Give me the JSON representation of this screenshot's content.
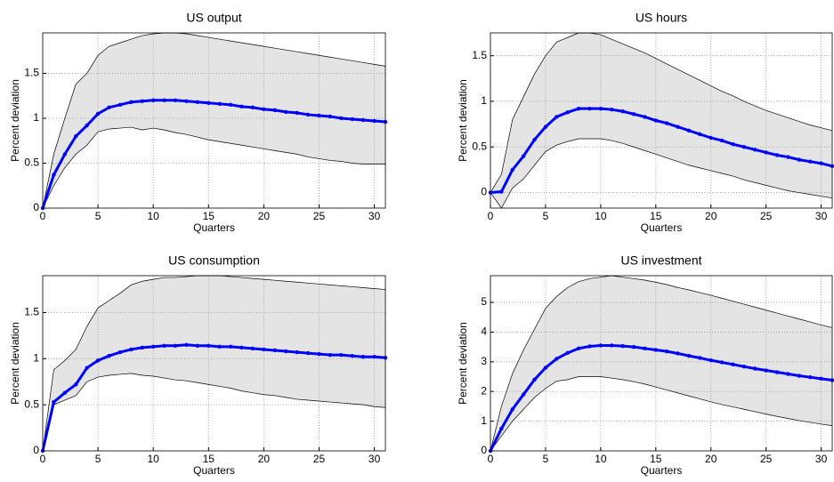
{
  "chart_data": [
    {
      "type": "line",
      "title": "US output",
      "xlabel": "Quarters",
      "ylabel": "Percent deviation",
      "x": [
        0,
        1,
        2,
        3,
        4,
        5,
        6,
        7,
        8,
        9,
        10,
        11,
        12,
        13,
        14,
        15,
        16,
        17,
        18,
        19,
        20,
        21,
        22,
        23,
        24,
        25,
        26,
        27,
        28,
        29,
        30,
        31
      ],
      "xlim": [
        0,
        31
      ],
      "xticks": [
        0,
        5,
        10,
        15,
        20,
        25,
        30
      ],
      "ylim": [
        0,
        1.95
      ],
      "yticks": [
        0,
        0.5,
        1,
        1.5
      ],
      "grid": true,
      "color": "#0000ff",
      "band_color": "#e4e4e4",
      "values": [
        0,
        0.37,
        0.6,
        0.8,
        0.92,
        1.05,
        1.12,
        1.15,
        1.18,
        1.19,
        1.2,
        1.2,
        1.2,
        1.19,
        1.18,
        1.17,
        1.16,
        1.15,
        1.13,
        1.12,
        1.1,
        1.09,
        1.07,
        1.06,
        1.04,
        1.03,
        1.02,
        1.0,
        0.99,
        0.98,
        0.97,
        0.96
      ],
      "band_lower": [
        0,
        0.25,
        0.45,
        0.6,
        0.7,
        0.85,
        0.88,
        0.89,
        0.9,
        0.87,
        0.89,
        0.87,
        0.84,
        0.82,
        0.79,
        0.76,
        0.74,
        0.72,
        0.7,
        0.68,
        0.66,
        0.64,
        0.62,
        0.6,
        0.57,
        0.55,
        0.53,
        0.52,
        0.5,
        0.49,
        0.49,
        0.49
      ],
      "band_upper": [
        0,
        0.6,
        1.0,
        1.38,
        1.5,
        1.7,
        1.8,
        1.84,
        1.88,
        1.92,
        1.94,
        1.95,
        1.95,
        1.94,
        1.92,
        1.9,
        1.88,
        1.86,
        1.84,
        1.82,
        1.8,
        1.78,
        1.76,
        1.74,
        1.72,
        1.7,
        1.68,
        1.66,
        1.64,
        1.62,
        1.6,
        1.58
      ]
    },
    {
      "type": "line",
      "title": "US hours",
      "xlabel": "Quarters",
      "ylabel": "Percent deviation",
      "x": [
        0,
        1,
        2,
        3,
        4,
        5,
        6,
        7,
        8,
        9,
        10,
        11,
        12,
        13,
        14,
        15,
        16,
        17,
        18,
        19,
        20,
        21,
        22,
        23,
        24,
        25,
        26,
        27,
        28,
        29,
        30,
        31
      ],
      "xlim": [
        0,
        31
      ],
      "xticks": [
        0,
        5,
        10,
        15,
        20,
        25,
        30
      ],
      "ylim": [
        -0.17,
        1.75
      ],
      "yticks": [
        0,
        0.5,
        1,
        1.5
      ],
      "grid": true,
      "color": "#0000ff",
      "band_color": "#e4e4e4",
      "values": [
        0,
        0.01,
        0.25,
        0.4,
        0.58,
        0.72,
        0.83,
        0.88,
        0.92,
        0.92,
        0.92,
        0.91,
        0.89,
        0.86,
        0.83,
        0.79,
        0.76,
        0.72,
        0.68,
        0.64,
        0.6,
        0.57,
        0.53,
        0.5,
        0.47,
        0.44,
        0.41,
        0.39,
        0.36,
        0.34,
        0.32,
        0.29
      ],
      "band_lower": [
        0,
        -0.17,
        0.05,
        0.15,
        0.3,
        0.45,
        0.52,
        0.56,
        0.59,
        0.59,
        0.59,
        0.57,
        0.54,
        0.5,
        0.46,
        0.42,
        0.38,
        0.34,
        0.3,
        0.27,
        0.24,
        0.21,
        0.18,
        0.14,
        0.11,
        0.08,
        0.05,
        0.02,
        0,
        -0.02,
        -0.04,
        -0.06
      ],
      "band_upper": [
        0,
        0.2,
        0.8,
        1.05,
        1.3,
        1.5,
        1.65,
        1.7,
        1.75,
        1.75,
        1.73,
        1.68,
        1.63,
        1.58,
        1.53,
        1.47,
        1.41,
        1.35,
        1.29,
        1.23,
        1.17,
        1.11,
        1.06,
        1.0,
        0.95,
        0.9,
        0.86,
        0.82,
        0.78,
        0.74,
        0.71,
        0.68
      ]
    },
    {
      "type": "line",
      "title": "US consumption",
      "xlabel": "Quarters",
      "ylabel": "Percent deviation",
      "x": [
        0,
        1,
        2,
        3,
        4,
        5,
        6,
        7,
        8,
        9,
        10,
        11,
        12,
        13,
        14,
        15,
        16,
        17,
        18,
        19,
        20,
        21,
        22,
        23,
        24,
        25,
        26,
        27,
        28,
        29,
        30,
        31
      ],
      "xlim": [
        0,
        31
      ],
      "xticks": [
        0,
        5,
        10,
        15,
        20,
        25,
        30
      ],
      "ylim": [
        0,
        1.9
      ],
      "yticks": [
        0,
        0.5,
        1,
        1.5
      ],
      "grid": true,
      "color": "#0000ff",
      "band_color": "#e4e4e4",
      "values": [
        0,
        0.53,
        0.63,
        0.72,
        0.9,
        0.98,
        1.03,
        1.07,
        1.1,
        1.12,
        1.13,
        1.14,
        1.14,
        1.15,
        1.14,
        1.14,
        1.13,
        1.13,
        1.12,
        1.11,
        1.1,
        1.09,
        1.08,
        1.07,
        1.06,
        1.05,
        1.04,
        1.04,
        1.03,
        1.02,
        1.02,
        1.01
      ],
      "band_lower": [
        0,
        0.5,
        0.55,
        0.6,
        0.75,
        0.8,
        0.82,
        0.83,
        0.84,
        0.82,
        0.81,
        0.79,
        0.77,
        0.76,
        0.74,
        0.72,
        0.7,
        0.68,
        0.65,
        0.63,
        0.61,
        0.6,
        0.58,
        0.56,
        0.55,
        0.54,
        0.53,
        0.52,
        0.51,
        0.5,
        0.48,
        0.47
      ],
      "band_upper": [
        0,
        0.88,
        0.98,
        1.1,
        1.35,
        1.55,
        1.63,
        1.71,
        1.8,
        1.84,
        1.86,
        1.88,
        1.88,
        1.89,
        1.9,
        1.9,
        1.9,
        1.89,
        1.88,
        1.87,
        1.86,
        1.85,
        1.84,
        1.83,
        1.82,
        1.81,
        1.8,
        1.79,
        1.78,
        1.77,
        1.76,
        1.75
      ]
    },
    {
      "type": "line",
      "title": "US investment",
      "xlabel": "Quarters",
      "ylabel": "Percent deviation",
      "x": [
        0,
        1,
        2,
        3,
        4,
        5,
        6,
        7,
        8,
        9,
        10,
        11,
        12,
        13,
        14,
        15,
        16,
        17,
        18,
        19,
        20,
        21,
        22,
        23,
        24,
        25,
        26,
        27,
        28,
        29,
        30,
        31
      ],
      "xlim": [
        0,
        31
      ],
      "xticks": [
        0,
        5,
        10,
        15,
        20,
        25,
        30
      ],
      "ylim": [
        0,
        5.9
      ],
      "yticks": [
        0,
        1,
        2,
        3,
        4,
        5
      ],
      "grid": true,
      "color": "#0000ff",
      "band_color": "#e4e4e4",
      "values": [
        0,
        0.75,
        1.4,
        1.9,
        2.4,
        2.8,
        3.1,
        3.3,
        3.45,
        3.52,
        3.55,
        3.55,
        3.53,
        3.5,
        3.45,
        3.4,
        3.35,
        3.28,
        3.2,
        3.13,
        3.05,
        2.98,
        2.91,
        2.84,
        2.77,
        2.71,
        2.65,
        2.59,
        2.53,
        2.48,
        2.43,
        2.38
      ],
      "band_lower": [
        0,
        0.5,
        1.0,
        1.4,
        1.8,
        2.1,
        2.35,
        2.4,
        2.5,
        2.5,
        2.5,
        2.45,
        2.4,
        2.33,
        2.25,
        2.15,
        2.05,
        1.95,
        1.85,
        1.75,
        1.65,
        1.56,
        1.48,
        1.4,
        1.32,
        1.24,
        1.16,
        1.09,
        1.02,
        0.96,
        0.9,
        0.85
      ],
      "band_upper": [
        0,
        1.5,
        2.6,
        3.4,
        4.1,
        4.8,
        5.2,
        5.5,
        5.7,
        5.8,
        5.85,
        5.9,
        5.85,
        5.8,
        5.75,
        5.68,
        5.6,
        5.5,
        5.42,
        5.33,
        5.24,
        5.14,
        5.04,
        4.94,
        4.84,
        4.74,
        4.64,
        4.54,
        4.44,
        4.34,
        4.24,
        4.15
      ]
    }
  ]
}
